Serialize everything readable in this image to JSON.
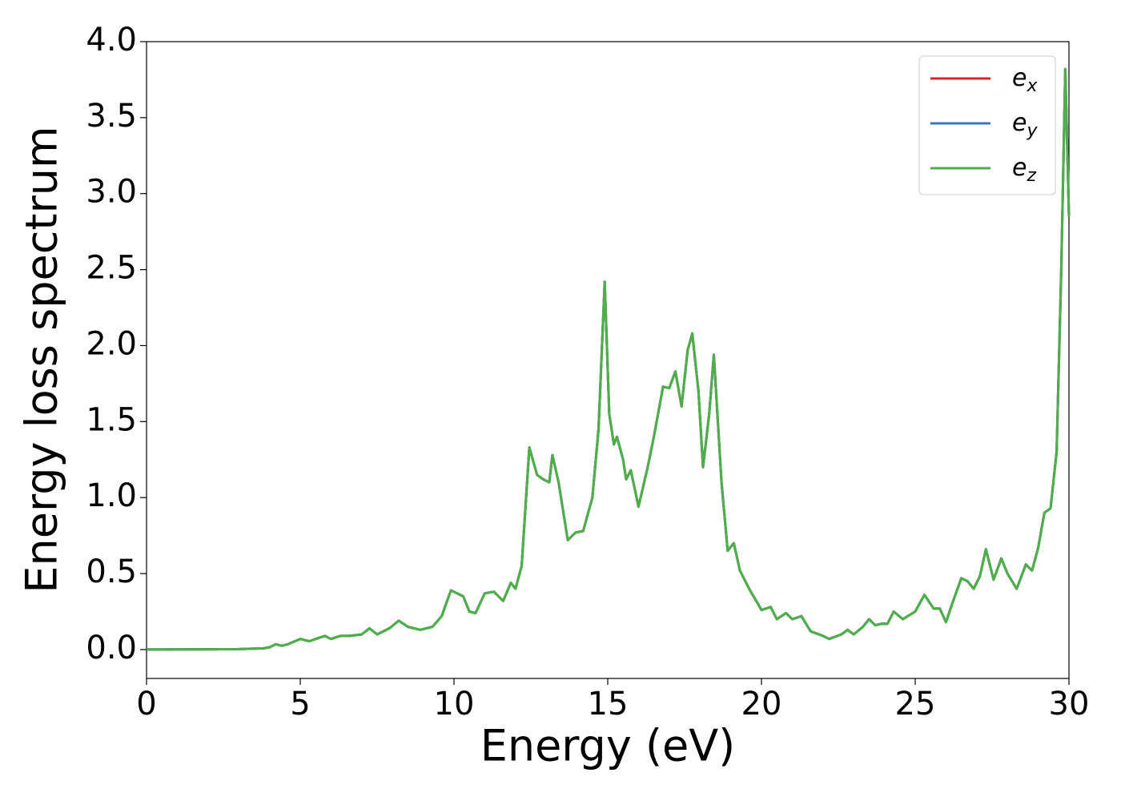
{
  "chart_data": {
    "type": "line",
    "xlabel": "Energy (eV)",
    "ylabel": "Energy loss spectrum",
    "x": [
      0,
      1,
      2,
      3,
      3.8,
      4.0,
      4.2,
      4.4,
      4.6,
      5.0,
      5.3,
      5.5,
      5.8,
      6.0,
      6.3,
      6.6,
      7.0,
      7.25,
      7.5,
      7.9,
      8.2,
      8.5,
      8.9,
      9.3,
      9.6,
      9.9,
      10.1,
      10.3,
      10.5,
      10.7,
      11.0,
      11.3,
      11.6,
      11.85,
      12.0,
      12.2,
      12.45,
      12.7,
      12.9,
      13.1,
      13.2,
      13.4,
      13.7,
      13.95,
      14.2,
      14.5,
      14.7,
      14.9,
      15.05,
      15.2,
      15.3,
      15.5,
      15.6,
      15.75,
      16.0,
      16.3,
      16.5,
      16.8,
      17.0,
      17.2,
      17.4,
      17.6,
      17.75,
      17.95,
      18.1,
      18.3,
      18.45,
      18.7,
      18.9,
      19.1,
      19.3,
      19.6,
      19.8,
      20.0,
      20.3,
      20.5,
      20.8,
      21.0,
      21.3,
      21.6,
      22.0,
      22.2,
      22.6,
      22.8,
      23.0,
      23.3,
      23.5,
      23.7,
      23.9,
      24.1,
      24.3,
      24.6,
      25.0,
      25.3,
      25.6,
      25.8,
      26.0,
      26.2,
      26.5,
      26.7,
      26.9,
      27.1,
      27.3,
      27.55,
      27.8,
      28.0,
      28.3,
      28.6,
      28.8,
      29.0,
      29.2,
      29.4,
      29.6,
      29.75,
      29.88,
      30.0
    ],
    "series": [
      {
        "name": "e_x",
        "color": "#d62728",
        "values": [
          0,
          0.001,
          0.002,
          0.003,
          0.008,
          0.015,
          0.035,
          0.025,
          0.035,
          0.07,
          0.055,
          0.07,
          0.09,
          0.07,
          0.09,
          0.09,
          0.1,
          0.14,
          0.1,
          0.14,
          0.19,
          0.15,
          0.13,
          0.15,
          0.22,
          0.39,
          0.37,
          0.35,
          0.25,
          0.24,
          0.37,
          0.38,
          0.32,
          0.44,
          0.4,
          0.55,
          1.33,
          1.15,
          1.12,
          1.1,
          1.28,
          1.1,
          0.72,
          0.77,
          0.78,
          1.0,
          1.45,
          2.42,
          1.55,
          1.35,
          1.4,
          1.25,
          1.12,
          1.18,
          0.94,
          1.2,
          1.4,
          1.73,
          1.72,
          1.83,
          1.6,
          1.97,
          2.08,
          1.7,
          1.2,
          1.55,
          1.94,
          1.1,
          0.65,
          0.7,
          0.52,
          0.4,
          0.33,
          0.26,
          0.28,
          0.2,
          0.24,
          0.2,
          0.22,
          0.12,
          0.09,
          0.07,
          0.1,
          0.13,
          0.1,
          0.15,
          0.2,
          0.16,
          0.17,
          0.17,
          0.25,
          0.2,
          0.25,
          0.36,
          0.27,
          0.27,
          0.18,
          0.3,
          0.47,
          0.45,
          0.4,
          0.48,
          0.66,
          0.46,
          0.6,
          0.5,
          0.4,
          0.56,
          0.52,
          0.67,
          0.9,
          0.93,
          1.3,
          2.5,
          3.82,
          2.85
        ]
      },
      {
        "name": "e_y",
        "color": "#3a78b5",
        "values": [
          0,
          0.001,
          0.002,
          0.003,
          0.008,
          0.015,
          0.035,
          0.025,
          0.035,
          0.07,
          0.055,
          0.07,
          0.09,
          0.07,
          0.09,
          0.09,
          0.1,
          0.14,
          0.1,
          0.14,
          0.19,
          0.15,
          0.13,
          0.15,
          0.22,
          0.39,
          0.37,
          0.35,
          0.25,
          0.24,
          0.37,
          0.38,
          0.32,
          0.44,
          0.4,
          0.55,
          1.33,
          1.15,
          1.12,
          1.1,
          1.28,
          1.1,
          0.72,
          0.77,
          0.78,
          1.0,
          1.45,
          2.42,
          1.55,
          1.35,
          1.4,
          1.25,
          1.12,
          1.18,
          0.94,
          1.2,
          1.4,
          1.73,
          1.72,
          1.83,
          1.6,
          1.97,
          2.08,
          1.7,
          1.2,
          1.55,
          1.94,
          1.1,
          0.65,
          0.7,
          0.52,
          0.4,
          0.33,
          0.26,
          0.28,
          0.2,
          0.24,
          0.2,
          0.22,
          0.12,
          0.09,
          0.07,
          0.1,
          0.13,
          0.1,
          0.15,
          0.2,
          0.16,
          0.17,
          0.17,
          0.25,
          0.2,
          0.25,
          0.36,
          0.27,
          0.27,
          0.18,
          0.3,
          0.47,
          0.45,
          0.4,
          0.48,
          0.66,
          0.46,
          0.6,
          0.5,
          0.4,
          0.56,
          0.52,
          0.67,
          0.9,
          0.93,
          1.3,
          2.5,
          3.82,
          2.85
        ]
      },
      {
        "name": "e_z",
        "color": "#4daf4a",
        "values": [
          0,
          0.001,
          0.002,
          0.003,
          0.008,
          0.015,
          0.035,
          0.025,
          0.035,
          0.07,
          0.055,
          0.07,
          0.09,
          0.07,
          0.09,
          0.09,
          0.1,
          0.14,
          0.1,
          0.14,
          0.19,
          0.15,
          0.13,
          0.15,
          0.22,
          0.39,
          0.37,
          0.35,
          0.25,
          0.24,
          0.37,
          0.38,
          0.32,
          0.44,
          0.4,
          0.55,
          1.33,
          1.15,
          1.12,
          1.1,
          1.28,
          1.1,
          0.72,
          0.77,
          0.78,
          1.0,
          1.45,
          2.42,
          1.55,
          1.35,
          1.4,
          1.25,
          1.12,
          1.18,
          0.94,
          1.2,
          1.4,
          1.73,
          1.72,
          1.83,
          1.6,
          1.97,
          2.08,
          1.7,
          1.2,
          1.55,
          1.94,
          1.1,
          0.65,
          0.7,
          0.52,
          0.4,
          0.33,
          0.26,
          0.28,
          0.2,
          0.24,
          0.2,
          0.22,
          0.12,
          0.09,
          0.07,
          0.1,
          0.13,
          0.1,
          0.15,
          0.2,
          0.16,
          0.17,
          0.17,
          0.25,
          0.2,
          0.25,
          0.36,
          0.27,
          0.27,
          0.18,
          0.3,
          0.47,
          0.45,
          0.4,
          0.48,
          0.66,
          0.46,
          0.6,
          0.5,
          0.4,
          0.56,
          0.52,
          0.67,
          0.9,
          0.93,
          1.3,
          2.5,
          3.82,
          2.85
        ]
      }
    ],
    "xlim": [
      0,
      30
    ],
    "xticks": [
      0,
      5,
      10,
      15,
      20,
      25,
      30
    ],
    "ylim": [
      -0.19,
      4.0
    ],
    "yticks": [
      {
        "value": 0,
        "label": "0.0"
      },
      {
        "value": 0.5,
        "label": "0.5"
      },
      {
        "value": 1,
        "label": "1.0"
      },
      {
        "value": 1.5,
        "label": "1.5"
      },
      {
        "value": 2,
        "label": "2.0"
      },
      {
        "value": 2.5,
        "label": "2.5"
      },
      {
        "value": 3,
        "label": "3.0"
      },
      {
        "value": 3.5,
        "label": "3.5"
      },
      {
        "value": 4,
        "label": "4.0"
      }
    ],
    "grid": false,
    "legend": "upper right"
  }
}
